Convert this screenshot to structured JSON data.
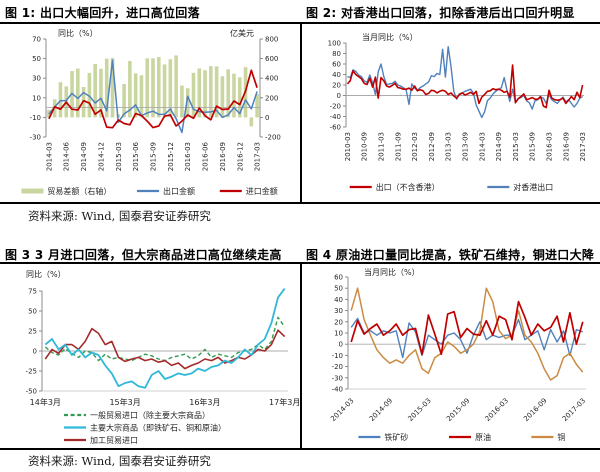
{
  "sources": {
    "top": "资料来源: Wind, 国泰君安证券研究",
    "bottom": "资料来源: Wind, 国泰君安证券研究"
  },
  "chart_data": [
    {
      "id": "fig1",
      "type": "bar+line",
      "title": "图 1: 出口大幅回升，进口高位回落",
      "ylabel_left": "同比（%）",
      "ylabel_right": "亿美元",
      "y_left": {
        "min": -30,
        "max": 70,
        "ticks": [
          70,
          50,
          30,
          10,
          -10,
          -30
        ]
      },
      "y_right": {
        "min": -200,
        "max": 800,
        "ticks": [
          800,
          600,
          400,
          200,
          0,
          -200
        ]
      },
      "x_ticks": {
        "step": 3,
        "labels": [
          "2014-03",
          "2014-06",
          "2014-09",
          "2014-12",
          "2015-03",
          "2015-06",
          "2015-09",
          "2015-12",
          "2016-03",
          "2016-06",
          "2016-09",
          "2016-12",
          "2017-03"
        ]
      },
      "bars": {
        "name": "贸易差额（右轴）",
        "axis": "right",
        "color": "#C9D6A0",
        "values": [
          77,
          185,
          359,
          316,
          473,
          498,
          310,
          454,
          545,
          496,
          600,
          606,
          31,
          341,
          576,
          450,
          430,
          602,
          603,
          616,
          541,
          594,
          633,
          325,
          298,
          455,
          500,
          481,
          523,
          520,
          420,
          490,
          446,
          409,
          513,
          -91,
          239
        ]
      },
      "series": [
        {
          "name": "出口金额",
          "color": "#4F81BD",
          "width": 1.5,
          "values": [
            -6.6,
            0.8,
            7.0,
            7.2,
            14.5,
            9.4,
            15.3,
            11.6,
            4.7,
            9.5,
            -3.3,
            48.3,
            -15.0,
            -6.4,
            -2.5,
            2.8,
            -8.3,
            -5.5,
            -3.7,
            -6.9,
            -6.8,
            -1.4,
            -11.2,
            -25.4,
            11.5,
            -1.8,
            -4.1,
            -4.8,
            -4.4,
            -2.8,
            -10.0,
            -7.3,
            0.1,
            -6.1,
            7.9,
            -1.3,
            16.4
          ]
        },
        {
          "name": "进口金额",
          "color": "#C00000",
          "width": 1.7,
          "values": [
            -11.3,
            0.8,
            -1.6,
            5.5,
            -1.6,
            -2.4,
            7.0,
            4.6,
            -6.7,
            -2.4,
            -19.9,
            -20.5,
            -12.7,
            -16.2,
            -17.6,
            -6.1,
            -8.1,
            -13.8,
            -20.4,
            -18.8,
            -8.7,
            -7.6,
            -18.8,
            -13.8,
            -7.6,
            -10.9,
            -0.4,
            -8.4,
            -12.5,
            1.5,
            -1.9,
            -1.4,
            6.7,
            3.1,
            16.7,
            38.1,
            20.3
          ]
        }
      ],
      "legend": {
        "items": [
          {
            "label": "贸易差额（右轴）",
            "color": "#C9D6A0",
            "type": "bar"
          },
          {
            "label": "出口金额",
            "color": "#4F81BD",
            "type": "line"
          },
          {
            "label": "进口金额",
            "color": "#C00000",
            "type": "line"
          }
        ]
      }
    },
    {
      "id": "fig2",
      "type": "line",
      "title": "图 2: 对香港出口回落，扣除香港后出口回升明显",
      "ylabel_left": "当月同比（%）",
      "y_left": {
        "min": -60,
        "max": 100,
        "ticks": [
          100,
          80,
          60,
          40,
          20,
          0,
          -20,
          -40,
          -60
        ]
      },
      "x_ticks": {
        "step": 6,
        "labels": [
          "2010-03",
          "2010-09",
          "2011-03",
          "2011-09",
          "2012-03",
          "2012-09",
          "2013-03",
          "2013-09",
          "2014-03",
          "2014-09",
          "2015-03",
          "2015-09",
          "2016-03",
          "2016-09",
          "2017-03"
        ]
      },
      "series": [
        {
          "name": "对香港出口",
          "color": "#4F81BD",
          "width": 1.4,
          "values": [
            36,
            34,
            49,
            46,
            39,
            36,
            28,
            25,
            39,
            24,
            2,
            45,
            60,
            36,
            21,
            22,
            23,
            27,
            20,
            18,
            15,
            10,
            -17,
            22,
            14,
            10,
            15,
            18,
            22,
            26,
            38,
            36,
            42,
            40,
            88,
            35,
            93,
            55,
            8,
            -7,
            3,
            5,
            8,
            10,
            12,
            5,
            -18,
            -30,
            -42,
            -31,
            -10,
            -5,
            3,
            8,
            12,
            15,
            34,
            10,
            -11,
            12,
            -12,
            -6,
            -4,
            0,
            -10,
            -14,
            -26,
            -10,
            -8,
            -3,
            -5,
            -15,
            2,
            -8,
            -12,
            -15,
            -8,
            -3,
            -12,
            -8,
            -15,
            -22,
            -15,
            -5,
            -2
          ]
        },
        {
          "name": "出口（不含香港）",
          "color": "#C00000",
          "width": 1.6,
          "values": [
            22,
            28,
            47,
            40,
            36,
            32,
            23,
            21,
            33,
            16,
            35,
            -5,
            34,
            28,
            18,
            16,
            19,
            23,
            15,
            14,
            12,
            12,
            14,
            10,
            18,
            9,
            11,
            9,
            2,
            4,
            10,
            9,
            5,
            8,
            10,
            8,
            2,
            5,
            -1,
            -5,
            2,
            5,
            1,
            3,
            6,
            2,
            8,
            -15,
            -3,
            2,
            8,
            9,
            13,
            11,
            12,
            10,
            6,
            8,
            -3,
            58,
            -14,
            -6,
            -2,
            3,
            -8,
            -6,
            -4,
            -7,
            -7,
            -2,
            -20,
            -23,
            10,
            -5,
            -8,
            -9,
            -8,
            -5,
            -15,
            -9,
            -2,
            -8,
            6,
            -4,
            20
          ]
        }
      ],
      "legend": {
        "items": [
          {
            "label": "出口（不含香港）",
            "color": "#C00000",
            "type": "line"
          },
          {
            "label": "对香港出口",
            "color": "#4F81BD",
            "type": "line"
          }
        ]
      }
    },
    {
      "id": "fig3",
      "type": "line",
      "title": "图 3  3 月进口回落，但大宗商品进口高位继续走高",
      "ylabel_left": "同比（%）",
      "y_left": {
        "min": -50,
        "max": 75,
        "ticks": [
          75,
          50,
          25,
          0,
          -25,
          -50
        ]
      },
      "x_ticks": {
        "step": 12,
        "labels": [
          "14年3月",
          "15年3月",
          "16年3月",
          "17年3月"
        ]
      },
      "series": [
        {
          "name": "一般贸易进口（除主要大宗商品）",
          "color": "#339A52",
          "width": 1.4,
          "dash": "4 2.6",
          "values": [
            5,
            -2,
            -5,
            3,
            -3,
            -8,
            0,
            -2,
            -12,
            -4,
            -10,
            -8,
            -10,
            -12,
            -8,
            -4,
            -6,
            -10,
            -12,
            -8,
            -6,
            -4,
            -10,
            -6,
            2,
            -8,
            -4,
            -6,
            -8,
            -2,
            0,
            2,
            8,
            2,
            12,
            42,
            30
          ]
        },
        {
          "name": "加工贸易进口",
          "color": "#A52A2A",
          "width": 1.6,
          "values": [
            -10,
            2,
            -3,
            8,
            8,
            2,
            12,
            28,
            22,
            8,
            12,
            -8,
            -13,
            -10,
            -8,
            -12,
            -10,
            -14,
            -12,
            -18,
            -15,
            -22,
            -18,
            -15,
            -10,
            -12,
            -8,
            -15,
            -12,
            -8,
            -10,
            -5,
            2,
            0,
            8,
            26,
            18
          ]
        },
        {
          "name": "主要大宗商品（即铁矿石、铜和原油）",
          "color": "#2FB8D9",
          "width": 1.8,
          "values": [
            8,
            15,
            2,
            8,
            -5,
            2,
            -8,
            -2,
            -5,
            -18,
            -28,
            -44,
            -40,
            -38,
            -44,
            -46,
            -30,
            -25,
            -35,
            -32,
            -28,
            -30,
            -28,
            -22,
            -25,
            -20,
            -18,
            -12,
            -15,
            -8,
            2,
            -5,
            8,
            15,
            35,
            67,
            78
          ]
        }
      ],
      "legend": {
        "items": [
          {
            "label": "一般贸易进口（除主要大宗商品）",
            "color": "#339A52",
            "type": "line",
            "dash": "4 2.6"
          },
          {
            "label": "主要大宗商品（即铁矿石、铜和原油）",
            "color": "#2FB8D9",
            "type": "line"
          },
          {
            "label": "加工贸易进口",
            "color": "#A52A2A",
            "type": "line"
          }
        ]
      }
    },
    {
      "id": "fig4",
      "type": "line",
      "title": "图 4 原油进口量同比提高，铁矿石维持，铜进口大降",
      "ylabel_left": "当月同比（%）",
      "y_left": {
        "min": -40,
        "max": 60,
        "ticks": [
          60,
          50,
          40,
          30,
          20,
          10,
          0,
          -10,
          -20,
          -30,
          -40
        ]
      },
      "x_ticks": {
        "step": 6,
        "labels": [
          "2014-03",
          "2014-09",
          "2015-03",
          "2015-09",
          "2016-03",
          "2016-09",
          "2017-03"
        ]
      },
      "series": [
        {
          "name": "铁矿砂",
          "color": "#4F81BD",
          "width": 1.4,
          "values": [
            15,
            23,
            10,
            12,
            8,
            12,
            10,
            12,
            -12,
            19,
            11,
            -10,
            8,
            4,
            0,
            8,
            10,
            4,
            -8,
            8,
            20,
            4,
            8,
            6,
            8,
            8,
            22,
            4,
            8,
            12,
            -5,
            13,
            2,
            12,
            -10,
            13,
            11
          ]
        },
        {
          "name": "铜",
          "color": "#CC8A42",
          "width": 1.5,
          "values": [
            30,
            50,
            22,
            8,
            -5,
            -12,
            -17,
            -14,
            -17,
            -10,
            -5,
            -22,
            -26,
            -12,
            -8,
            2,
            -2,
            -8,
            -5,
            0,
            12,
            50,
            38,
            12,
            5,
            8,
            30,
            8,
            2,
            -8,
            -22,
            -32,
            -28,
            -12,
            -8,
            -18,
            -25
          ]
        },
        {
          "name": "原油",
          "color": "#C00000",
          "width": 1.7,
          "values": [
            2,
            21,
            9,
            14,
            18,
            8,
            12,
            18,
            8,
            13,
            14,
            -9,
            26,
            9,
            -9,
            27,
            29,
            6,
            14,
            9,
            8,
            21,
            8,
            25,
            22,
            4,
            38,
            24,
            8,
            18,
            12,
            15,
            25,
            2,
            28,
            0,
            20
          ]
        }
      ],
      "legend": {
        "items": [
          {
            "label": "铁矿砂",
            "color": "#4F81BD",
            "type": "line"
          },
          {
            "label": "原油",
            "color": "#C00000",
            "type": "line"
          },
          {
            "label": "铜",
            "color": "#CC8A42",
            "type": "line"
          }
        ]
      }
    }
  ]
}
